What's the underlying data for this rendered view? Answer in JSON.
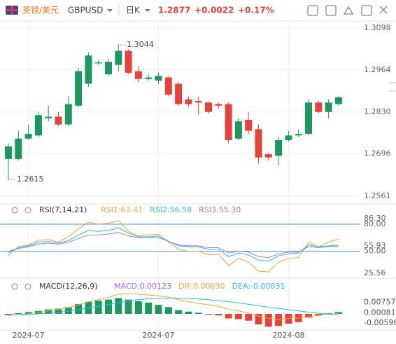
{
  "header": {
    "pair": "英镑/美元",
    "code": "GBPUSD",
    "period": "日K",
    "price": "1.2877",
    "change": "+0.0022",
    "change_pct": "+0.17%"
  },
  "chart_data": [
    {
      "type": "candlestick",
      "categories": [
        null,
        null,
        "2024-07",
        null,
        null,
        null,
        null,
        null,
        null,
        null,
        null,
        null,
        null,
        null,
        null,
        "2024-07",
        null,
        null,
        null,
        null,
        null,
        null,
        null,
        null,
        null,
        null,
        null,
        null,
        "2024-08",
        null,
        null,
        null,
        null,
        null
      ],
      "open": [
        1.268,
        1.268,
        1.2745,
        1.2755,
        1.281,
        1.2815,
        1.279,
        1.285,
        1.292,
        1.2985,
        1.295,
        1.298,
        1.3025,
        1.296,
        1.2935,
        1.293,
        1.294,
        1.292,
        1.287,
        1.2865,
        1.286,
        1.2855,
        1.2855,
        1.2745,
        1.2805,
        1.2775,
        1.2695,
        1.269,
        1.274,
        1.2755,
        1.276,
        1.286,
        1.283,
        1.2855
      ],
      "high": [
        1.273,
        1.277,
        1.279,
        1.283,
        1.285,
        1.283,
        1.288,
        1.297,
        1.302,
        1.2995,
        1.3,
        1.3044,
        1.303,
        1.2975,
        1.295,
        1.2955,
        1.2945,
        1.2925,
        1.288,
        1.288,
        1.2865,
        1.286,
        1.286,
        1.281,
        1.283,
        1.279,
        1.27,
        1.275,
        1.277,
        1.2775,
        1.287,
        1.2865,
        1.287,
        1.288
      ],
      "low": [
        1.2615,
        1.2675,
        1.274,
        1.275,
        1.28,
        1.2785,
        1.2785,
        1.2845,
        1.291,
        1.298,
        1.2945,
        1.296,
        1.295,
        1.2925,
        1.293,
        1.292,
        1.288,
        1.285,
        1.2845,
        1.282,
        1.2825,
        1.284,
        1.273,
        1.274,
        1.276,
        1.2665,
        1.2675,
        1.266,
        1.2735,
        1.275,
        1.2755,
        1.2825,
        1.281,
        1.285
      ],
      "close": [
        1.272,
        1.2745,
        1.276,
        1.282,
        1.2815,
        1.279,
        1.2855,
        1.296,
        1.301,
        1.2988,
        1.299,
        1.3025,
        1.2955,
        1.2935,
        1.294,
        1.2945,
        1.2885,
        1.2855,
        1.2855,
        1.286,
        1.283,
        1.285,
        1.274,
        1.28,
        1.277,
        1.2685,
        1.2685,
        1.274,
        1.2755,
        1.276,
        1.286,
        1.283,
        1.286,
        1.2877
      ],
      "up_color": "#1a9a5e",
      "down_color": "#e8413a",
      "annotations": [
        {
          "index": 11,
          "value": 1.3044
        },
        {
          "index": 0,
          "value": 1.2615
        }
      ],
      "ylim": [
        1.2539,
        1.312
      ],
      "yticks": [
        {
          "value": 1.3098,
          "label": "1.3098"
        },
        {
          "value": 1.2964,
          "label": "1.2964"
        },
        {
          "value": 1.283,
          "label": "1.2830"
        },
        {
          "value": 1.2696,
          "label": "1.2696"
        },
        {
          "value": 1.2561,
          "label": "1.2561"
        }
      ],
      "grid": true
    },
    {
      "type": "line",
      "title": "RSI(7,14,21)",
      "series": [
        {
          "name": "RSI1:63.41",
          "color": "#f5a33a",
          "values": [
            45,
            55,
            57,
            62,
            63,
            60,
            66,
            75,
            82,
            80,
            81,
            84,
            72,
            67,
            68,
            69,
            60,
            52,
            50,
            50,
            46,
            47,
            34,
            42,
            38,
            28,
            27,
            38,
            42,
            43,
            60,
            55,
            60,
            63.41
          ]
        },
        {
          "name": "RSI2:56.58",
          "color": "#29bfd6",
          "values": [
            48,
            54,
            56,
            60,
            61,
            59,
            62,
            68,
            73,
            72,
            73,
            76,
            70,
            66,
            66,
            67,
            61,
            56,
            55,
            55,
            52,
            52,
            44,
            48,
            46,
            40,
            39,
            45,
            47,
            48,
            57,
            55,
            56,
            56.58
          ]
        },
        {
          "name": "RSI3:55.30",
          "color": "#9a7fd6",
          "values": [
            50,
            53,
            55,
            58,
            59,
            58,
            60,
            64,
            68,
            68,
            69,
            71,
            67,
            65,
            65,
            65,
            61,
            57,
            56,
            56,
            54,
            54,
            48,
            50,
            49,
            44,
            43,
            47,
            49,
            49,
            55,
            54,
            55,
            55.3
          ]
        }
      ],
      "ylim": [
        21.67,
        101.8
      ],
      "yticks": [
        {
          "value": 86.3,
          "label": "86.30"
        },
        {
          "value": 80,
          "label": "80.00"
        },
        {
          "value": 55.93,
          "label": "55.93"
        },
        {
          "value": 50,
          "label": "50.00"
        },
        {
          "value": 25.56,
          "label": "25.56"
        }
      ],
      "ref_lines": [
        80,
        50
      ],
      "ref_color": "#4a90d9"
    },
    {
      "type": "macd",
      "title": "MACD(12,26,9)",
      "series": [
        {
          "name": "MACD:0.00123",
          "color": "#a066d8",
          "values": [
            -0.0008,
            0.0005,
            0.0012,
            0.002,
            0.003,
            0.0035,
            0.0045,
            0.0065,
            0.008,
            0.0088,
            0.0095,
            0.0105,
            0.0095,
            0.0085,
            0.0075,
            0.006,
            0.0045,
            0.0025,
            0.0015,
            0.0008,
            -0.0005,
            -0.001,
            -0.003,
            -0.0035,
            -0.0045,
            -0.007,
            -0.0085,
            -0.008,
            -0.0065,
            -0.0055,
            -0.0025,
            -0.001,
            0.0004,
            0.00123
          ]
        },
        {
          "name": "DIF:0.00030",
          "color": "#f5a33a",
          "values": [
            -0.001,
            -0.0005,
            0,
            0.001,
            0.002,
            0.003,
            0.004,
            0.006,
            0.008,
            0.0095,
            0.011,
            0.013,
            0.0135,
            0.013,
            0.0125,
            0.012,
            0.011,
            0.0095,
            0.008,
            0.007,
            0.006,
            0.005,
            0.003,
            0.002,
            0.0005,
            -0.0015,
            -0.003,
            -0.0035,
            -0.003,
            -0.0028,
            -0.002,
            -0.001,
            -0.0003,
            0.0003
          ]
        },
        {
          "name": "DEA:-0.00031",
          "color": "#29bfd6",
          "values": [
            -0.0006,
            -0.0007,
            -0.0006,
            0,
            0.0005,
            0.0012,
            0.0018,
            0.0028,
            0.004,
            0.005,
            0.0062,
            0.0075,
            0.0088,
            0.0095,
            0.01,
            0.0102,
            0.0104,
            0.0104,
            0.0102,
            0.0099,
            0.0094,
            0.0088,
            0.0081,
            0.0073,
            0.0064,
            0.0054,
            0.0045,
            0.0036,
            0.0028,
            0.002,
            0.0012,
            0.0004,
            -0.0001,
            -0.00031
          ]
        }
      ],
      "up_color": "#1a9a5e",
      "down_color": "#e8413a",
      "ylim": [
        -0.0102,
        0.0223
      ],
      "yticks": [
        0.00757,
        0.00081,
        -0.00596
      ]
    }
  ]
}
